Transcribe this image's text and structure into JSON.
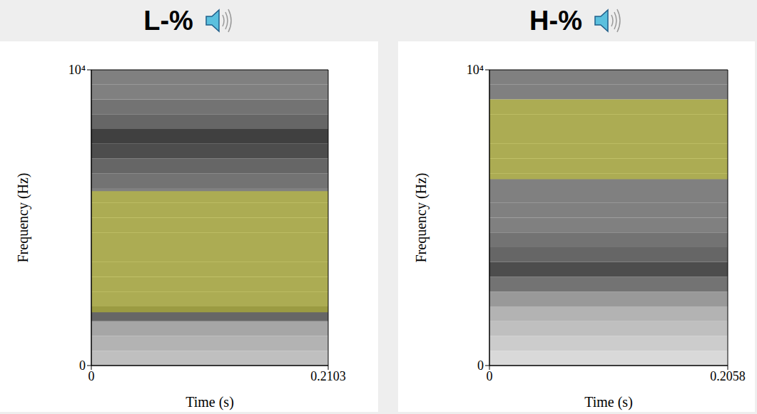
{
  "chart_data": [
    {
      "type": "heatmap",
      "title": "L-%",
      "x_label": "Time (s)",
      "y_label": "Frequency (Hz)",
      "xlim": [
        0,
        0.2103
      ],
      "xticks": [
        0,
        0.2103
      ],
      "ylim": [
        0,
        10000
      ],
      "yticks": [
        0,
        {
          "value": 10000,
          "label": "10⁴"
        }
      ],
      "freq_bins": [
        0,
        500,
        1000,
        1500,
        2000,
        2500,
        3000,
        3500,
        4000,
        4500,
        5000,
        5500,
        6000,
        6500,
        7000,
        7500,
        8000,
        8500,
        9000,
        9500,
        10000
      ],
      "intensity": [
        0.25,
        0.3,
        0.35,
        0.6,
        0.5,
        0.5,
        0.5,
        0.5,
        0.5,
        0.5,
        0.5,
        0.5,
        0.55,
        0.6,
        0.7,
        0.75,
        0.6,
        0.55,
        0.5,
        0.5
      ],
      "highlight": [
        1800,
        5900
      ],
      "color": "#ffff00"
    },
    {
      "type": "heatmap",
      "title": "H-%",
      "x_label": "Time (s)",
      "y_label": "Frequency (Hz)",
      "xlim": [
        0,
        0.2058
      ],
      "xticks": [
        0,
        0.2058
      ],
      "ylim": [
        0,
        10000
      ],
      "yticks": [
        0,
        {
          "value": 10000,
          "label": "10⁴"
        }
      ],
      "freq_bins": [
        0,
        500,
        1000,
        1500,
        2000,
        2500,
        3000,
        3500,
        4000,
        4500,
        5000,
        5500,
        6000,
        6500,
        7000,
        7500,
        8000,
        8500,
        9000,
        9500,
        10000
      ],
      "intensity": [
        0.15,
        0.2,
        0.25,
        0.3,
        0.4,
        0.55,
        0.7,
        0.6,
        0.55,
        0.5,
        0.5,
        0.5,
        0.5,
        0.5,
        0.5,
        0.5,
        0.5,
        0.5,
        0.5,
        0.5
      ],
      "highlight": [
        6300,
        9000
      ],
      "color": "#ffff00"
    }
  ]
}
